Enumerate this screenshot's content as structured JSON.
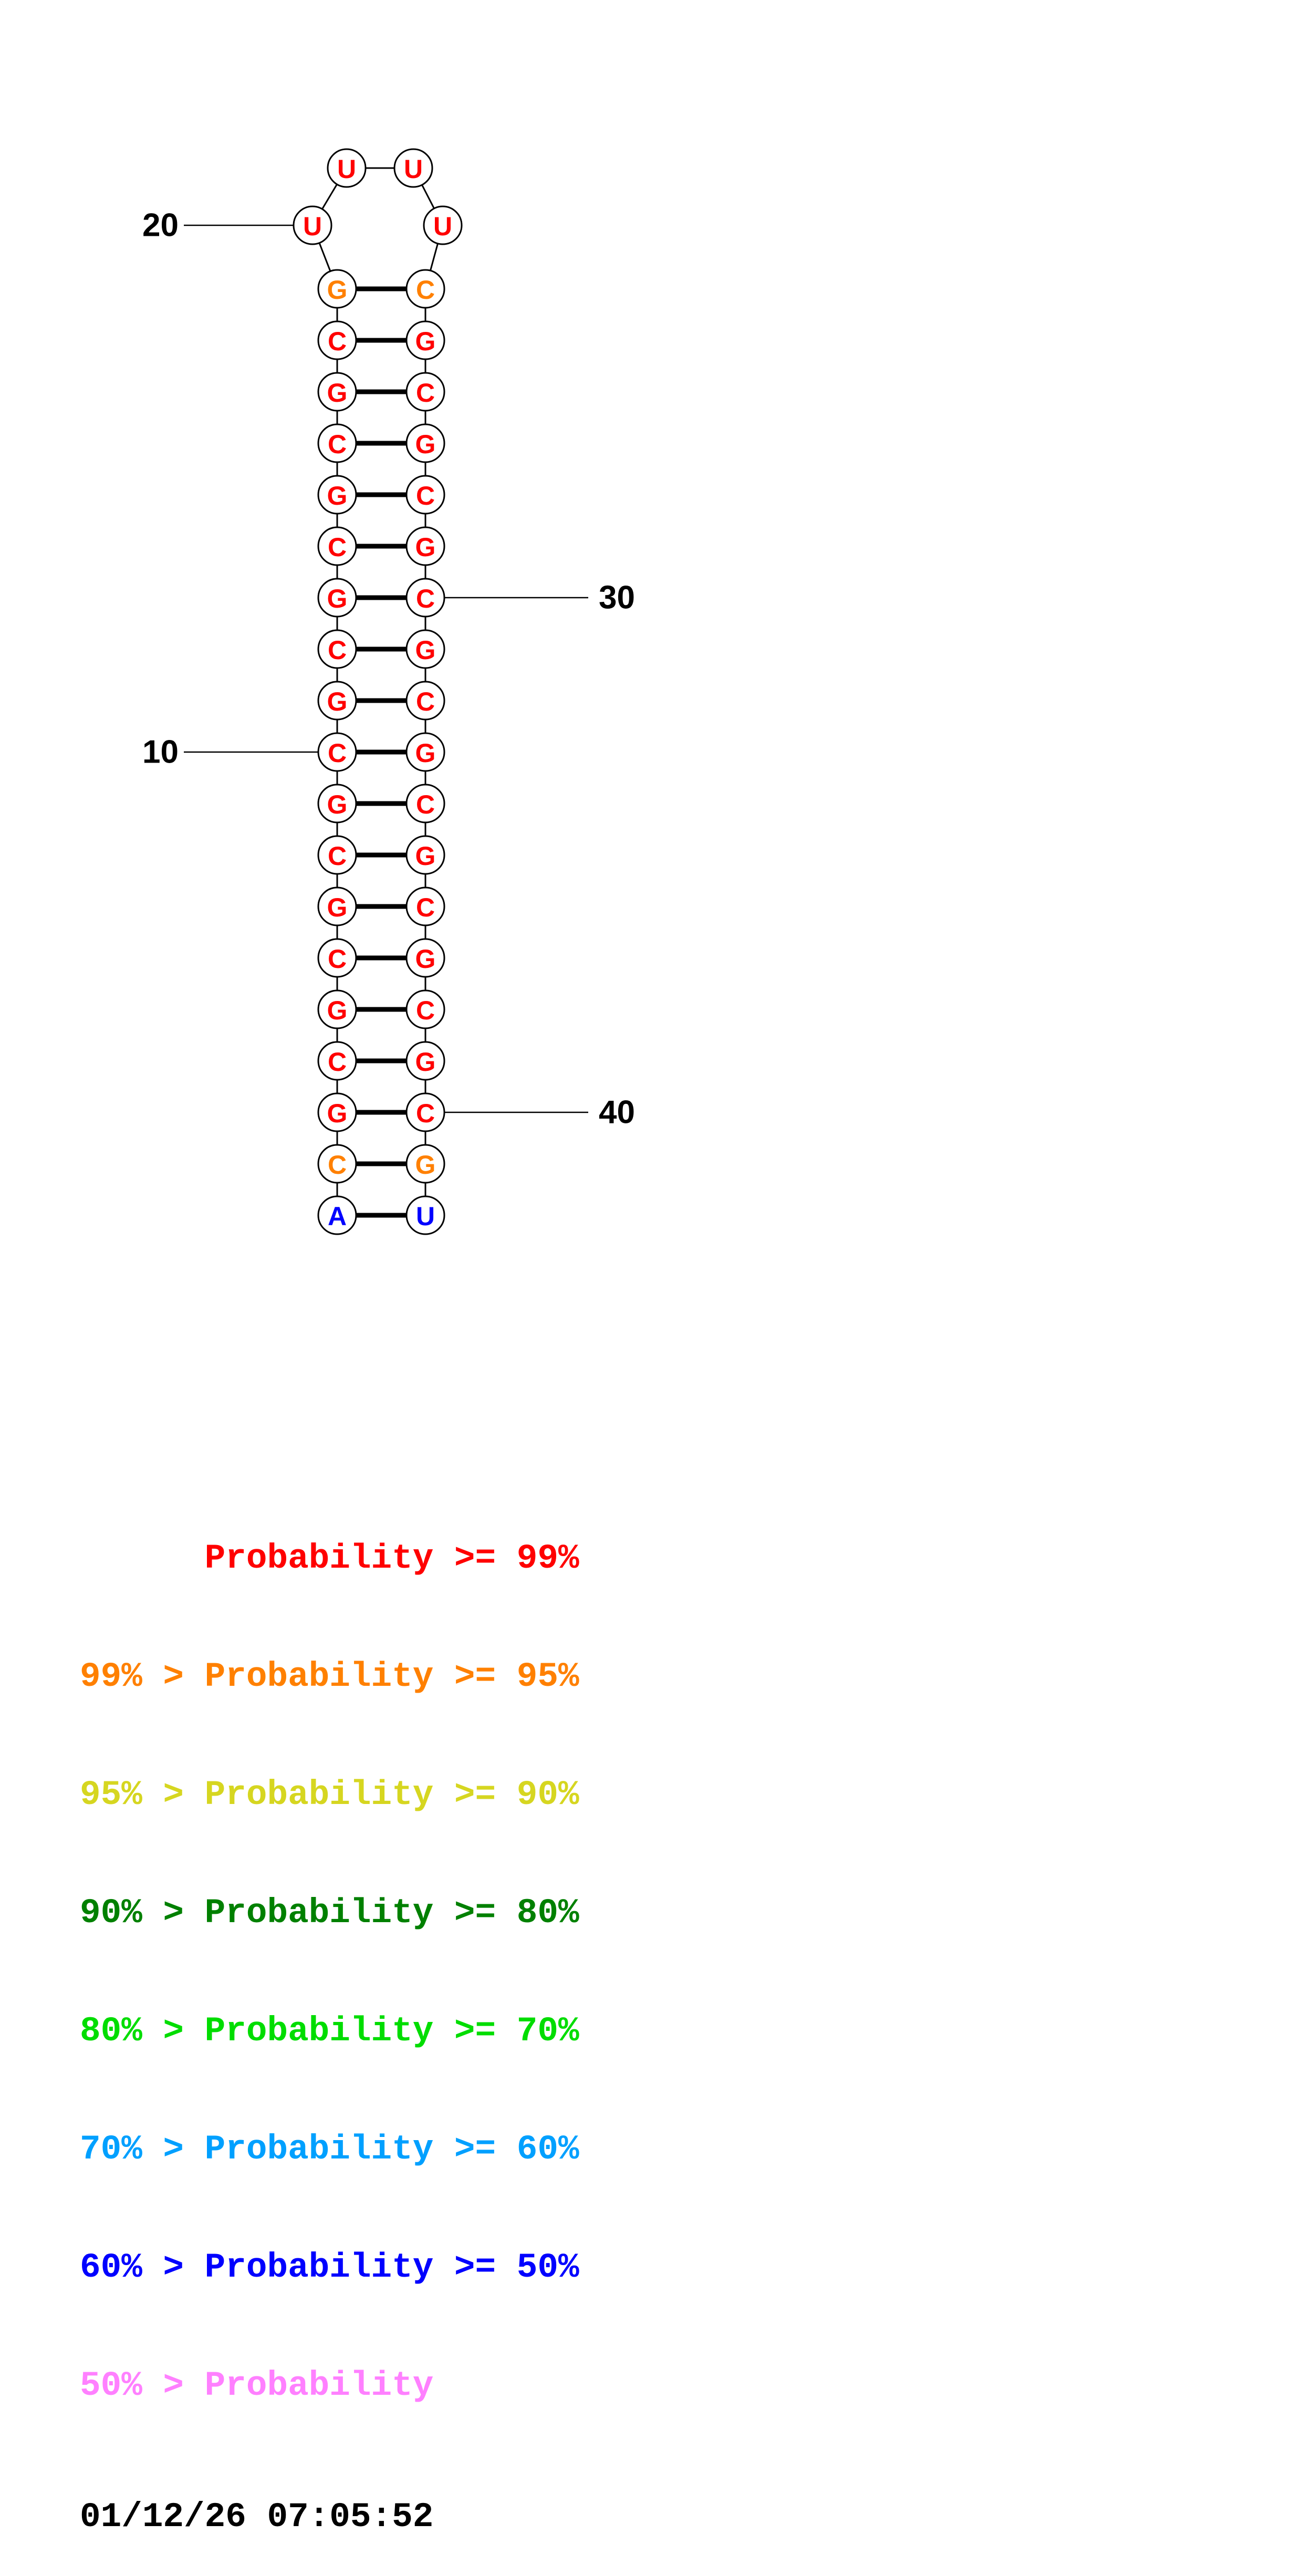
{
  "diagram": {
    "pairs": [
      {
        "left_base": "G",
        "left_color": "#ff8000",
        "right_base": "C",
        "right_color": "#ff8000"
      },
      {
        "left_base": "C",
        "left_color": "#ff0000",
        "right_base": "G",
        "right_color": "#ff0000"
      },
      {
        "left_base": "G",
        "left_color": "#ff0000",
        "right_base": "C",
        "right_color": "#ff0000"
      },
      {
        "left_base": "C",
        "left_color": "#ff0000",
        "right_base": "G",
        "right_color": "#ff0000"
      },
      {
        "left_base": "G",
        "left_color": "#ff0000",
        "right_base": "C",
        "right_color": "#ff0000"
      },
      {
        "left_base": "C",
        "left_color": "#ff0000",
        "right_base": "G",
        "right_color": "#ff0000"
      },
      {
        "left_base": "G",
        "left_color": "#ff0000",
        "right_base": "C",
        "right_color": "#ff0000"
      },
      {
        "left_base": "C",
        "left_color": "#ff0000",
        "right_base": "G",
        "right_color": "#ff0000"
      },
      {
        "left_base": "G",
        "left_color": "#ff0000",
        "right_base": "C",
        "right_color": "#ff0000"
      },
      {
        "left_base": "C",
        "left_color": "#ff0000",
        "right_base": "G",
        "right_color": "#ff0000"
      },
      {
        "left_base": "G",
        "left_color": "#ff0000",
        "right_base": "C",
        "right_color": "#ff0000"
      },
      {
        "left_base": "C",
        "left_color": "#ff0000",
        "right_base": "G",
        "right_color": "#ff0000"
      },
      {
        "left_base": "G",
        "left_color": "#ff0000",
        "right_base": "C",
        "right_color": "#ff0000"
      },
      {
        "left_base": "C",
        "left_color": "#ff0000",
        "right_base": "G",
        "right_color": "#ff0000"
      },
      {
        "left_base": "G",
        "left_color": "#ff0000",
        "right_base": "C",
        "right_color": "#ff0000"
      },
      {
        "left_base": "C",
        "left_color": "#ff0000",
        "right_base": "G",
        "right_color": "#ff0000"
      },
      {
        "left_base": "G",
        "left_color": "#ff0000",
        "right_base": "C",
        "right_color": "#ff0000"
      },
      {
        "left_base": "C",
        "left_color": "#ff8000",
        "right_base": "G",
        "right_color": "#ff8000"
      },
      {
        "left_base": "A",
        "left_color": "#0000ff",
        "right_base": "U",
        "right_color": "#0000ff"
      }
    ],
    "loop": [
      {
        "slot": "left",
        "base": "U",
        "color": "#ff0000"
      },
      {
        "slot": "top-left",
        "base": "U",
        "color": "#ff0000"
      },
      {
        "slot": "top-right",
        "base": "U",
        "color": "#ff0000"
      },
      {
        "slot": "right",
        "base": "U",
        "color": "#ff0000"
      }
    ],
    "position_labels": [
      {
        "text": "20",
        "side": "left",
        "target": {
          "type": "loop",
          "slot": "left"
        }
      },
      {
        "text": "10",
        "side": "left",
        "target": {
          "type": "pair",
          "row": 9,
          "side": "left"
        }
      },
      {
        "text": "30",
        "side": "right",
        "target": {
          "type": "pair",
          "row": 6,
          "side": "right"
        }
      },
      {
        "text": "40",
        "side": "right",
        "target": {
          "type": "pair",
          "row": 16,
          "side": "right"
        }
      }
    ]
  },
  "legend": {
    "lines": [
      {
        "text": "      Probability >= 99%",
        "color": "#ff0000"
      },
      {
        "text": "99% > Probability >= 95%",
        "color": "#ff8000"
      },
      {
        "text": "95% > Probability >= 90%",
        "color": "#d6d620"
      },
      {
        "text": "90% > Probability >= 80%",
        "color": "#008000"
      },
      {
        "text": "80% > Probability >= 70%",
        "color": "#00dd00"
      },
      {
        "text": "70% > Probability >= 60%",
        "color": "#00a0ff"
      },
      {
        "text": "60% > Probability >= 50%",
        "color": "#0000ff"
      },
      {
        "text": "50% > Probability",
        "color": "#ff80ff"
      }
    ],
    "timestamp": "01/12/26 07:05:52"
  }
}
